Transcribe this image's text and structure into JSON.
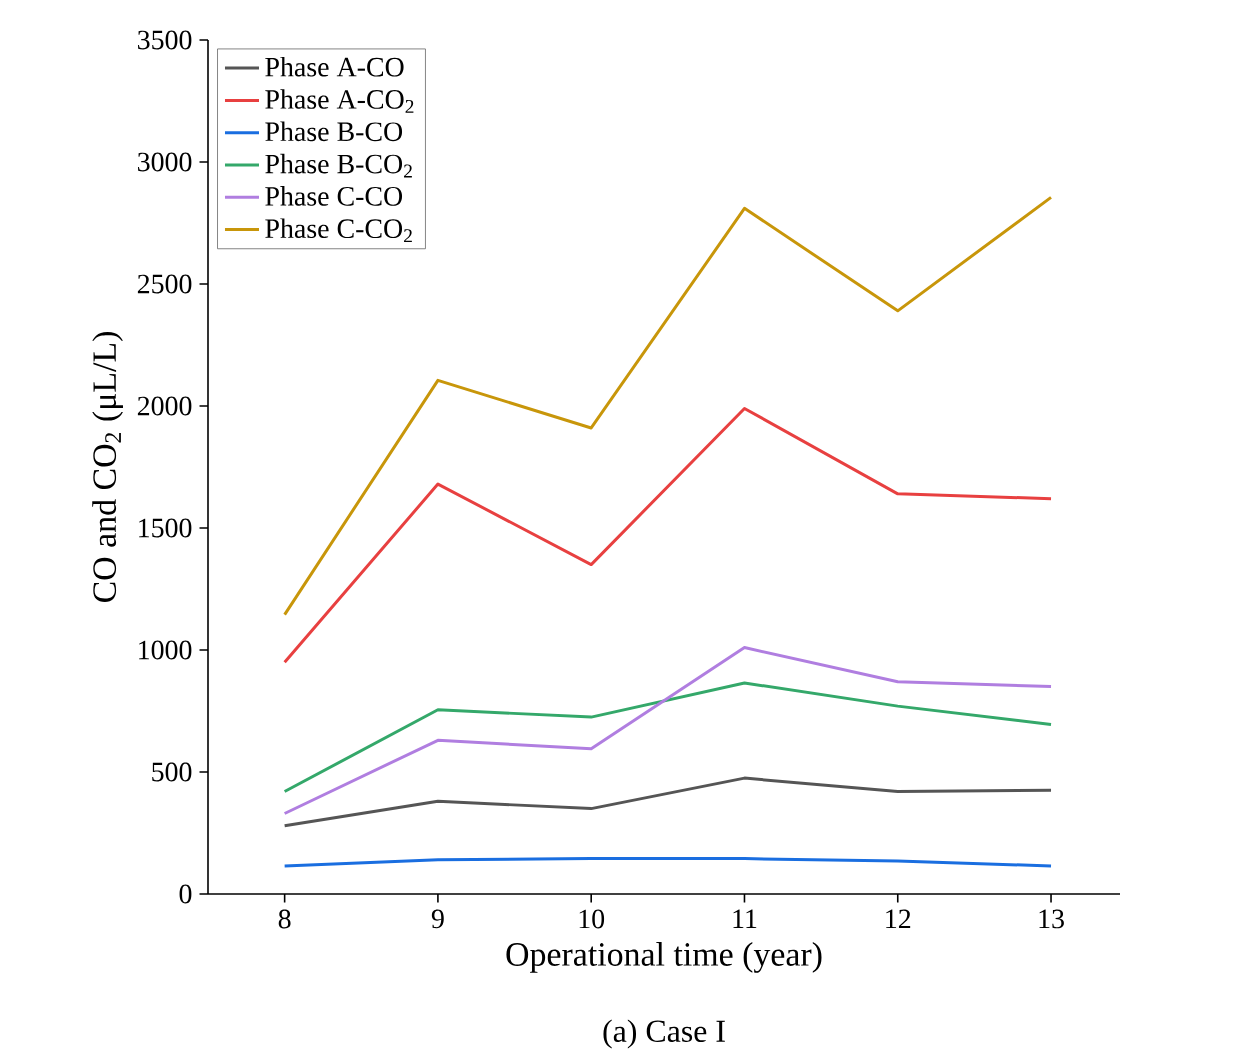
{
  "chart_data": {
    "type": "line",
    "xlabel": "Operational time (year)",
    "ylabel": "CO and CO$_{2}$ (μL/L)",
    "annotations": [
      "(a) Case I"
    ],
    "x": [
      8,
      9,
      10,
      11,
      12,
      13
    ],
    "series": [
      {
        "name": "Phase A-CO",
        "color": "#555555",
        "values": [
          280,
          380,
          350,
          475,
          420,
          425
        ]
      },
      {
        "name": "Phase A-CO$_{2}$",
        "color": "#e84040",
        "values": [
          950,
          1680,
          1350,
          1990,
          1640,
          1620
        ]
      },
      {
        "name": "Phase B-CO",
        "color": "#1a6ee0",
        "values": [
          115,
          140,
          145,
          145,
          135,
          115
        ]
      },
      {
        "name": "Phase B-CO$_{2}$",
        "color": "#34a86a",
        "values": [
          420,
          755,
          725,
          865,
          770,
          695
        ]
      },
      {
        "name": "Phase C-CO",
        "color": "#b07ee0",
        "values": [
          330,
          630,
          595,
          1010,
          870,
          850
        ]
      },
      {
        "name": "Phase C-CO$_{2}$",
        "color": "#c8960a",
        "values": [
          1145,
          2105,
          1910,
          2810,
          2390,
          2855
        ]
      }
    ],
    "xlim": [
      7.5,
      13.45
    ],
    "ylim": [
      0,
      3500
    ],
    "xticks": [
      8,
      9,
      10,
      11,
      12,
      13
    ],
    "yticks": [
      0,
      500,
      1000,
      1500,
      2000,
      2500,
      3000,
      3500
    ],
    "legend": "top left",
    "grid": false,
    "marker": "none",
    "line_style": "solid"
  }
}
